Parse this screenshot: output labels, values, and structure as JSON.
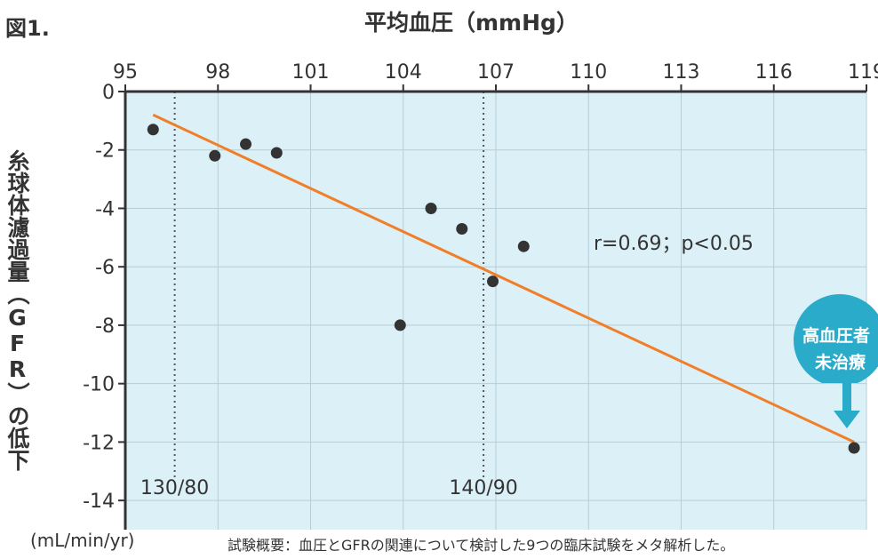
{
  "figure_label": "図1.",
  "unit_label": "(mL/min/yr)",
  "footnote": "試験概要：血圧とGFRの関連について検討した9つの臨床試験をメタ解析した。",
  "annotation_stat": "r=0.69；p<0.05",
  "callout": {
    "line1": "高血圧者",
    "line2": "未治療",
    "color": "#2aabc9"
  },
  "colors": {
    "plot_bg": "#dcf0f8",
    "grid": "#b7cdd6",
    "trend": "#f07f28",
    "point": "#333333",
    "axis": "#333333"
  },
  "chart_data": {
    "type": "scatter",
    "title": "",
    "xlabel": "平均血圧（mmHg）",
    "ylabel": "糸球体濾過量（GFR）の低下",
    "xlim": [
      95,
      119
    ],
    "ylim": [
      -15,
      0
    ],
    "x_ticks": [
      95,
      98,
      101,
      104,
      107,
      110,
      113,
      116,
      119
    ],
    "y_ticks": [
      0,
      -2,
      -4,
      -6,
      -8,
      -10,
      -12,
      -14
    ],
    "grid": true,
    "points": [
      {
        "x": 95.9,
        "y": -1.3
      },
      {
        "x": 97.9,
        "y": -2.2
      },
      {
        "x": 98.9,
        "y": -1.8
      },
      {
        "x": 99.9,
        "y": -2.1
      },
      {
        "x": 103.9,
        "y": -8.0
      },
      {
        "x": 104.9,
        "y": -4.0
      },
      {
        "x": 105.9,
        "y": -4.7
      },
      {
        "x": 106.9,
        "y": -6.5
      },
      {
        "x": 107.9,
        "y": -5.3
      },
      {
        "x": 118.6,
        "y": -12.2
      }
    ],
    "trend_line": {
      "from": {
        "x": 95.9,
        "y": -0.8
      },
      "to": {
        "x": 118.6,
        "y": -12.0
      }
    },
    "reference_lines": [
      {
        "x": 96.6,
        "label": "130/80"
      },
      {
        "x": 106.6,
        "label": "140/90"
      }
    ]
  }
}
